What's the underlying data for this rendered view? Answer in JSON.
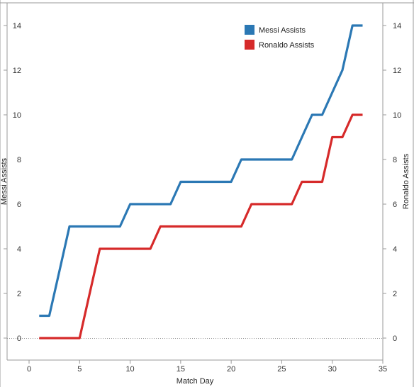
{
  "chart_data": {
    "type": "line",
    "title": "",
    "xlabel": "Match Day",
    "ylabel_left": "Messi Assists",
    "ylabel_right": "Ronaldo Assists",
    "xlim": [
      -2,
      35
    ],
    "ylim": [
      -1,
      15
    ],
    "xticks": [
      0,
      5,
      10,
      15,
      20,
      25,
      30,
      35
    ],
    "yticks": [
      0,
      2,
      4,
      6,
      8,
      10,
      12,
      14
    ],
    "legend_position": "top-right",
    "zero_line": true,
    "x": [
      1,
      2,
      3,
      4,
      5,
      6,
      7,
      8,
      9,
      10,
      11,
      12,
      13,
      14,
      15,
      16,
      17,
      18,
      19,
      20,
      21,
      22,
      23,
      24,
      25,
      26,
      27,
      28,
      29,
      30,
      31,
      32,
      33
    ],
    "series": [
      {
        "name": "Messi Assists",
        "color": "#2b78b4",
        "values": [
          1,
          1,
          3,
          5,
          5,
          5,
          5,
          5,
          5,
          6,
          6,
          6,
          6,
          6,
          7,
          7,
          7,
          7,
          7,
          7,
          8,
          8,
          8,
          8,
          8,
          8,
          9,
          10,
          10,
          11,
          12,
          14,
          14
        ]
      },
      {
        "name": "Ronaldo Assists",
        "color": "#d62a2a",
        "values": [
          0,
          0,
          0,
          0,
          0,
          2,
          4,
          4,
          4,
          4,
          4,
          4,
          5,
          5,
          5,
          5,
          5,
          5,
          5,
          5,
          5,
          6,
          6,
          6,
          6,
          6,
          7,
          7,
          7,
          9,
          9,
          10,
          10
        ]
      }
    ]
  }
}
